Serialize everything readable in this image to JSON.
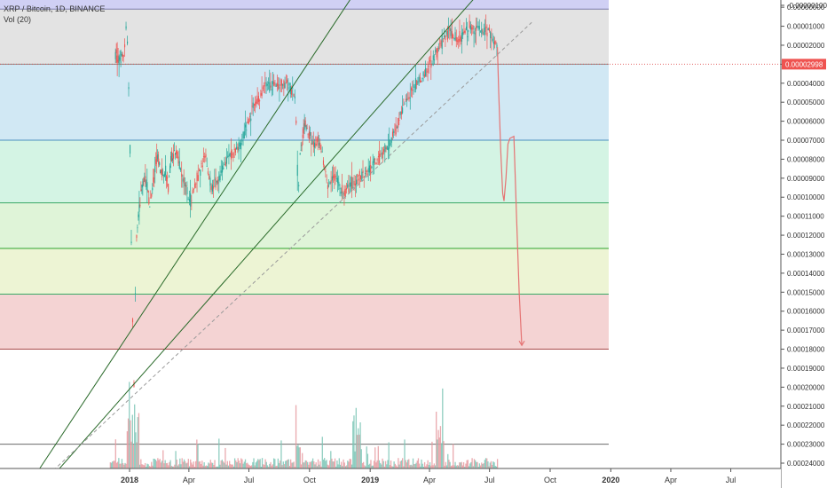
{
  "header": {
    "symbol_line": "XRP / Bitcoin, 1D, BINANCE",
    "indicator_line": "Vol (20)"
  },
  "chart_data": {
    "type": "candlestick",
    "title": "XRP / Bitcoin, 1D, BINANCE",
    "y_axis_inverted": true,
    "ylim": [
      -1e-06,
      0.00024
    ],
    "y_ticks": [
      "-0.00000100",
      "0.00000000",
      "0.00001000",
      "0.00002000",
      "0.00003000",
      "0.00004000",
      "0.00005000",
      "0.00006000",
      "0.00007000",
      "0.00008000",
      "0.00009000",
      "0.00010000",
      "0.00011000",
      "0.00012000",
      "0.00013000",
      "0.00014000",
      "0.00015000",
      "0.00016000",
      "0.00017000",
      "0.00018000",
      "0.00019000",
      "0.00020000",
      "0.00021000",
      "0.00022000",
      "0.00023000",
      "0.00024000"
    ],
    "y_tick_values": [
      -1e-06,
      0,
      1e-05,
      2e-05,
      3e-05,
      4e-05,
      5e-05,
      6e-05,
      7e-05,
      8e-05,
      9e-05,
      0.0001,
      0.00011,
      0.00012,
      0.00013,
      0.00014,
      0.00015,
      0.00016,
      0.00017,
      0.00018,
      0.00019,
      0.0002,
      0.00021,
      0.00022,
      0.00023,
      0.00024
    ],
    "x_ticks": [
      {
        "label": "2018",
        "x": 0,
        "bold": true
      },
      {
        "label": "Apr",
        "x": 90
      },
      {
        "label": "Jul",
        "x": 181
      },
      {
        "label": "Oct",
        "x": 273
      },
      {
        "label": "2019",
        "x": 365,
        "bold": true
      },
      {
        "label": "Apr",
        "x": 455
      },
      {
        "label": "Jul",
        "x": 546
      },
      {
        "label": "Oct",
        "x": 638
      },
      {
        "label": "2020",
        "x": 730,
        "bold": true
      },
      {
        "label": "Apr",
        "x": 821
      },
      {
        "label": "Jul",
        "x": 912
      }
    ],
    "x_unit": "days since 2018-01-01",
    "price_marker": {
      "label": "0.00002998",
      "value": 2.998e-05
    },
    "fib_levels": [
      {
        "value": 1e-06,
        "fill": "#d0d0f4",
        "line": "#7c7caa"
      },
      {
        "value": 2.998e-05,
        "fill": "#e3e3e3",
        "line": "#8a8a8a"
      },
      {
        "value": 7e-05,
        "fill": "#d1e8f4",
        "line": "#4a90c0"
      },
      {
        "value": 0.000103,
        "fill": "#d4f4e4",
        "line": "#3aa866"
      },
      {
        "value": 0.000127,
        "fill": "#dff4d8",
        "line": "#2ea42e"
      },
      {
        "value": 0.000151,
        "fill": "#edf4d4",
        "line": "#3aa866"
      },
      {
        "value": 0.00018,
        "fill": "#f4d3d3",
        "line": "#a84a4a"
      },
      {
        "value": 0.00023,
        "fill": "#ffffff",
        "line": "#6a6a6a"
      }
    ],
    "price_path": [
      [
        -22,
        2.5e-05
      ],
      [
        -18,
        2.8e-05
      ],
      [
        -14,
        2.6e-05
      ],
      [
        -10,
        2.5e-05
      ],
      [
        -8,
        1.8e-05
      ],
      [
        -6,
        1e-05
      ],
      [
        -4,
        2e-05
      ],
      [
        -2,
        4e-05
      ],
      [
        0,
        7.5e-05
      ],
      [
        2,
        0.000125
      ],
      [
        4,
        0.000165
      ],
      [
        6,
        0.0002
      ],
      [
        8,
        0.00015
      ],
      [
        10,
        0.00012
      ],
      [
        14,
        0.000105
      ],
      [
        18,
        9.5e-05
      ],
      [
        22,
        9e-05
      ],
      [
        26,
        9.5e-05
      ],
      [
        30,
        0.000105
      ],
      [
        34,
        9.5e-05
      ],
      [
        38,
        8.5e-05
      ],
      [
        42,
        8e-05
      ],
      [
        46,
        8.5e-05
      ],
      [
        50,
        9e-05
      ],
      [
        54,
        8.7e-05
      ],
      [
        58,
        9.5e-05
      ],
      [
        62,
        8e-05
      ],
      [
        66,
        7.8e-05
      ],
      [
        70,
        7.6e-05
      ],
      [
        75,
        8.2e-05
      ],
      [
        80,
        9e-05
      ],
      [
        85,
        9.5e-05
      ],
      [
        90,
        0.000103
      ],
      [
        95,
        9.8e-05
      ],
      [
        100,
        9.2e-05
      ],
      [
        105,
        8.7e-05
      ],
      [
        110,
        8.2e-05
      ],
      [
        115,
        7.8e-05
      ],
      [
        120,
        9e-05
      ],
      [
        125,
        9.5e-05
      ],
      [
        130,
        9.2e-05
      ],
      [
        135,
        9e-05
      ],
      [
        140,
        8.5e-05
      ],
      [
        145,
        8.2e-05
      ],
      [
        150,
        7.8e-05
      ],
      [
        155,
        7.7e-05
      ],
      [
        160,
        7.5e-05
      ],
      [
        165,
        7.3e-05
      ],
      [
        170,
        7e-05
      ],
      [
        175,
        6.5e-05
      ],
      [
        180,
        6e-05
      ],
      [
        185,
        5.5e-05
      ],
      [
        190,
        5e-05
      ],
      [
        195,
        4.8e-05
      ],
      [
        200,
        4.5e-05
      ],
      [
        205,
        4.2e-05
      ],
      [
        210,
        4e-05
      ],
      [
        215,
        4.3e-05
      ],
      [
        220,
        4e-05
      ],
      [
        225,
        4.2e-05
      ],
      [
        230,
        4e-05
      ],
      [
        235,
        4.1e-05
      ],
      [
        240,
        4e-05
      ],
      [
        245,
        4.5e-05
      ],
      [
        250,
        4.8e-05
      ],
      [
        252,
        6e-05
      ],
      [
        254,
        8.5e-05
      ],
      [
        256,
        9.5e-05
      ],
      [
        258,
        7.8e-05
      ],
      [
        262,
        6.8e-05
      ],
      [
        266,
        6.2e-05
      ],
      [
        270,
        6.6e-05
      ],
      [
        275,
        7e-05
      ],
      [
        280,
        7.2e-05
      ],
      [
        285,
        7e-05
      ],
      [
        290,
        7.5e-05
      ],
      [
        295,
        8.5e-05
      ],
      [
        300,
        9.5e-05
      ],
      [
        305,
        9.2e-05
      ],
      [
        310,
        9e-05
      ],
      [
        315,
        9.2e-05
      ],
      [
        320,
        9.6e-05
      ],
      [
        325,
        9.8e-05
      ],
      [
        330,
        9.5e-05
      ],
      [
        335,
        9.3e-05
      ],
      [
        340,
        9.2e-05
      ],
      [
        345,
        9e-05
      ],
      [
        350,
        9e-05
      ],
      [
        355,
        8.8e-05
      ],
      [
        360,
        8.6e-05
      ],
      [
        365,
        8.5e-05
      ],
      [
        370,
        8.2e-05
      ],
      [
        375,
        8e-05
      ],
      [
        380,
        7.8e-05
      ],
      [
        385,
        7.6e-05
      ],
      [
        390,
        7.4e-05
      ],
      [
        395,
        7.2e-05
      ],
      [
        400,
        6.6e-05
      ],
      [
        405,
        6.2e-05
      ],
      [
        410,
        5.8e-05
      ],
      [
        415,
        5.2e-05
      ],
      [
        420,
        4.8e-05
      ],
      [
        425,
        4.5e-05
      ],
      [
        430,
        4.2e-05
      ],
      [
        435,
        4e-05
      ],
      [
        440,
        3.8e-05
      ],
      [
        445,
        3.6e-05
      ],
      [
        450,
        3.3e-05
      ],
      [
        455,
        3e-05
      ],
      [
        460,
        2.8e-05
      ],
      [
        465,
        2.4e-05
      ],
      [
        470,
        2e-05
      ],
      [
        475,
        1.7e-05
      ],
      [
        480,
        1.4e-05
      ],
      [
        485,
        1.3e-05
      ],
      [
        490,
        1.5e-05
      ],
      [
        495,
        1.7e-05
      ],
      [
        500,
        1.6e-05
      ],
      [
        505,
        1.4e-05
      ],
      [
        510,
        1.3e-05
      ],
      [
        515,
        1e-05
      ],
      [
        520,
        1.1e-05
      ],
      [
        525,
        1.2e-05
      ],
      [
        530,
        1.1e-05
      ],
      [
        535,
        1.2e-05
      ],
      [
        540,
        1.3e-05
      ],
      [
        545,
        1.2e-05
      ],
      [
        550,
        1.7e-05
      ],
      [
        555,
        2e-05
      ],
      [
        558,
        2.3e-05
      ]
    ],
    "projection_path": [
      [
        558,
        2.1e-05
      ],
      [
        560,
        4.5e-05
      ],
      [
        563,
        7.5e-05
      ],
      [
        566,
        9.8e-05
      ],
      [
        568,
        0.000102
      ],
      [
        571,
        9e-05
      ],
      [
        574,
        7.2e-05
      ],
      [
        577,
        6.9e-05
      ],
      [
        583,
        6.8e-05
      ],
      [
        587,
        0.00011
      ],
      [
        591,
        0.00015
      ],
      [
        595,
        0.000178
      ]
    ],
    "trendlines": [
      {
        "from": [
          -150,
          0.00025
        ],
        "to": [
          390,
          -3.3e-05
        ],
        "color": "#2a6a2a",
        "dash": false
      },
      {
        "from": [
          -150,
          0.00026
        ],
        "to": [
          600,
          -3.5e-05
        ],
        "color": "#2a6a2a",
        "dash": false
      },
      {
        "from": [
          -150,
          0.000255
        ],
        "to": [
          610,
          8e-06
        ],
        "color": "#9a9a9a",
        "dash": true
      }
    ],
    "volume_axis_bottom": 0.00024,
    "volume_axis_height_units": 4.5e-05
  }
}
